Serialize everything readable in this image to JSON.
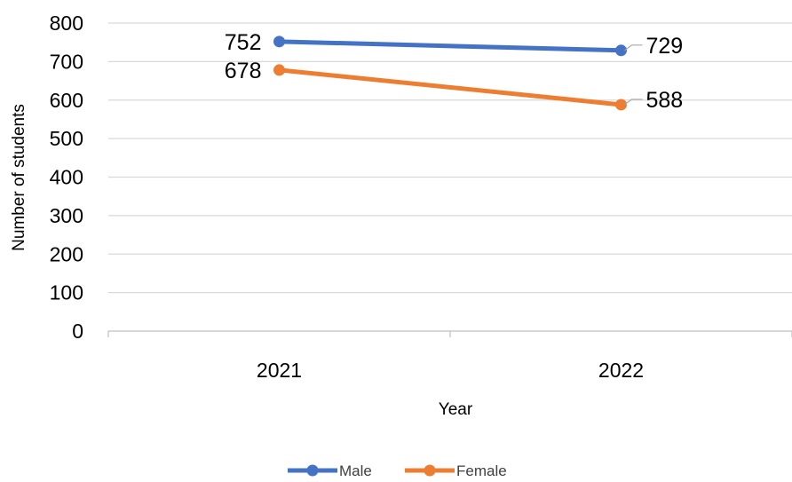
{
  "chart_data": {
    "type": "line",
    "categories": [
      "2021",
      "2022"
    ],
    "series": [
      {
        "name": "Male",
        "values": [
          752,
          729
        ],
        "color": "#4472C4"
      },
      {
        "name": "Female",
        "values": [
          678,
          588
        ],
        "color": "#ED7D31"
      }
    ],
    "title": "",
    "xlabel": "Year",
    "ylabel": "Number of students",
    "ylim": [
      0,
      800
    ],
    "yticks": [
      0,
      100,
      200,
      300,
      400,
      500,
      600,
      700,
      800
    ],
    "grid": true,
    "legend": "bottom",
    "data_labels": true
  }
}
